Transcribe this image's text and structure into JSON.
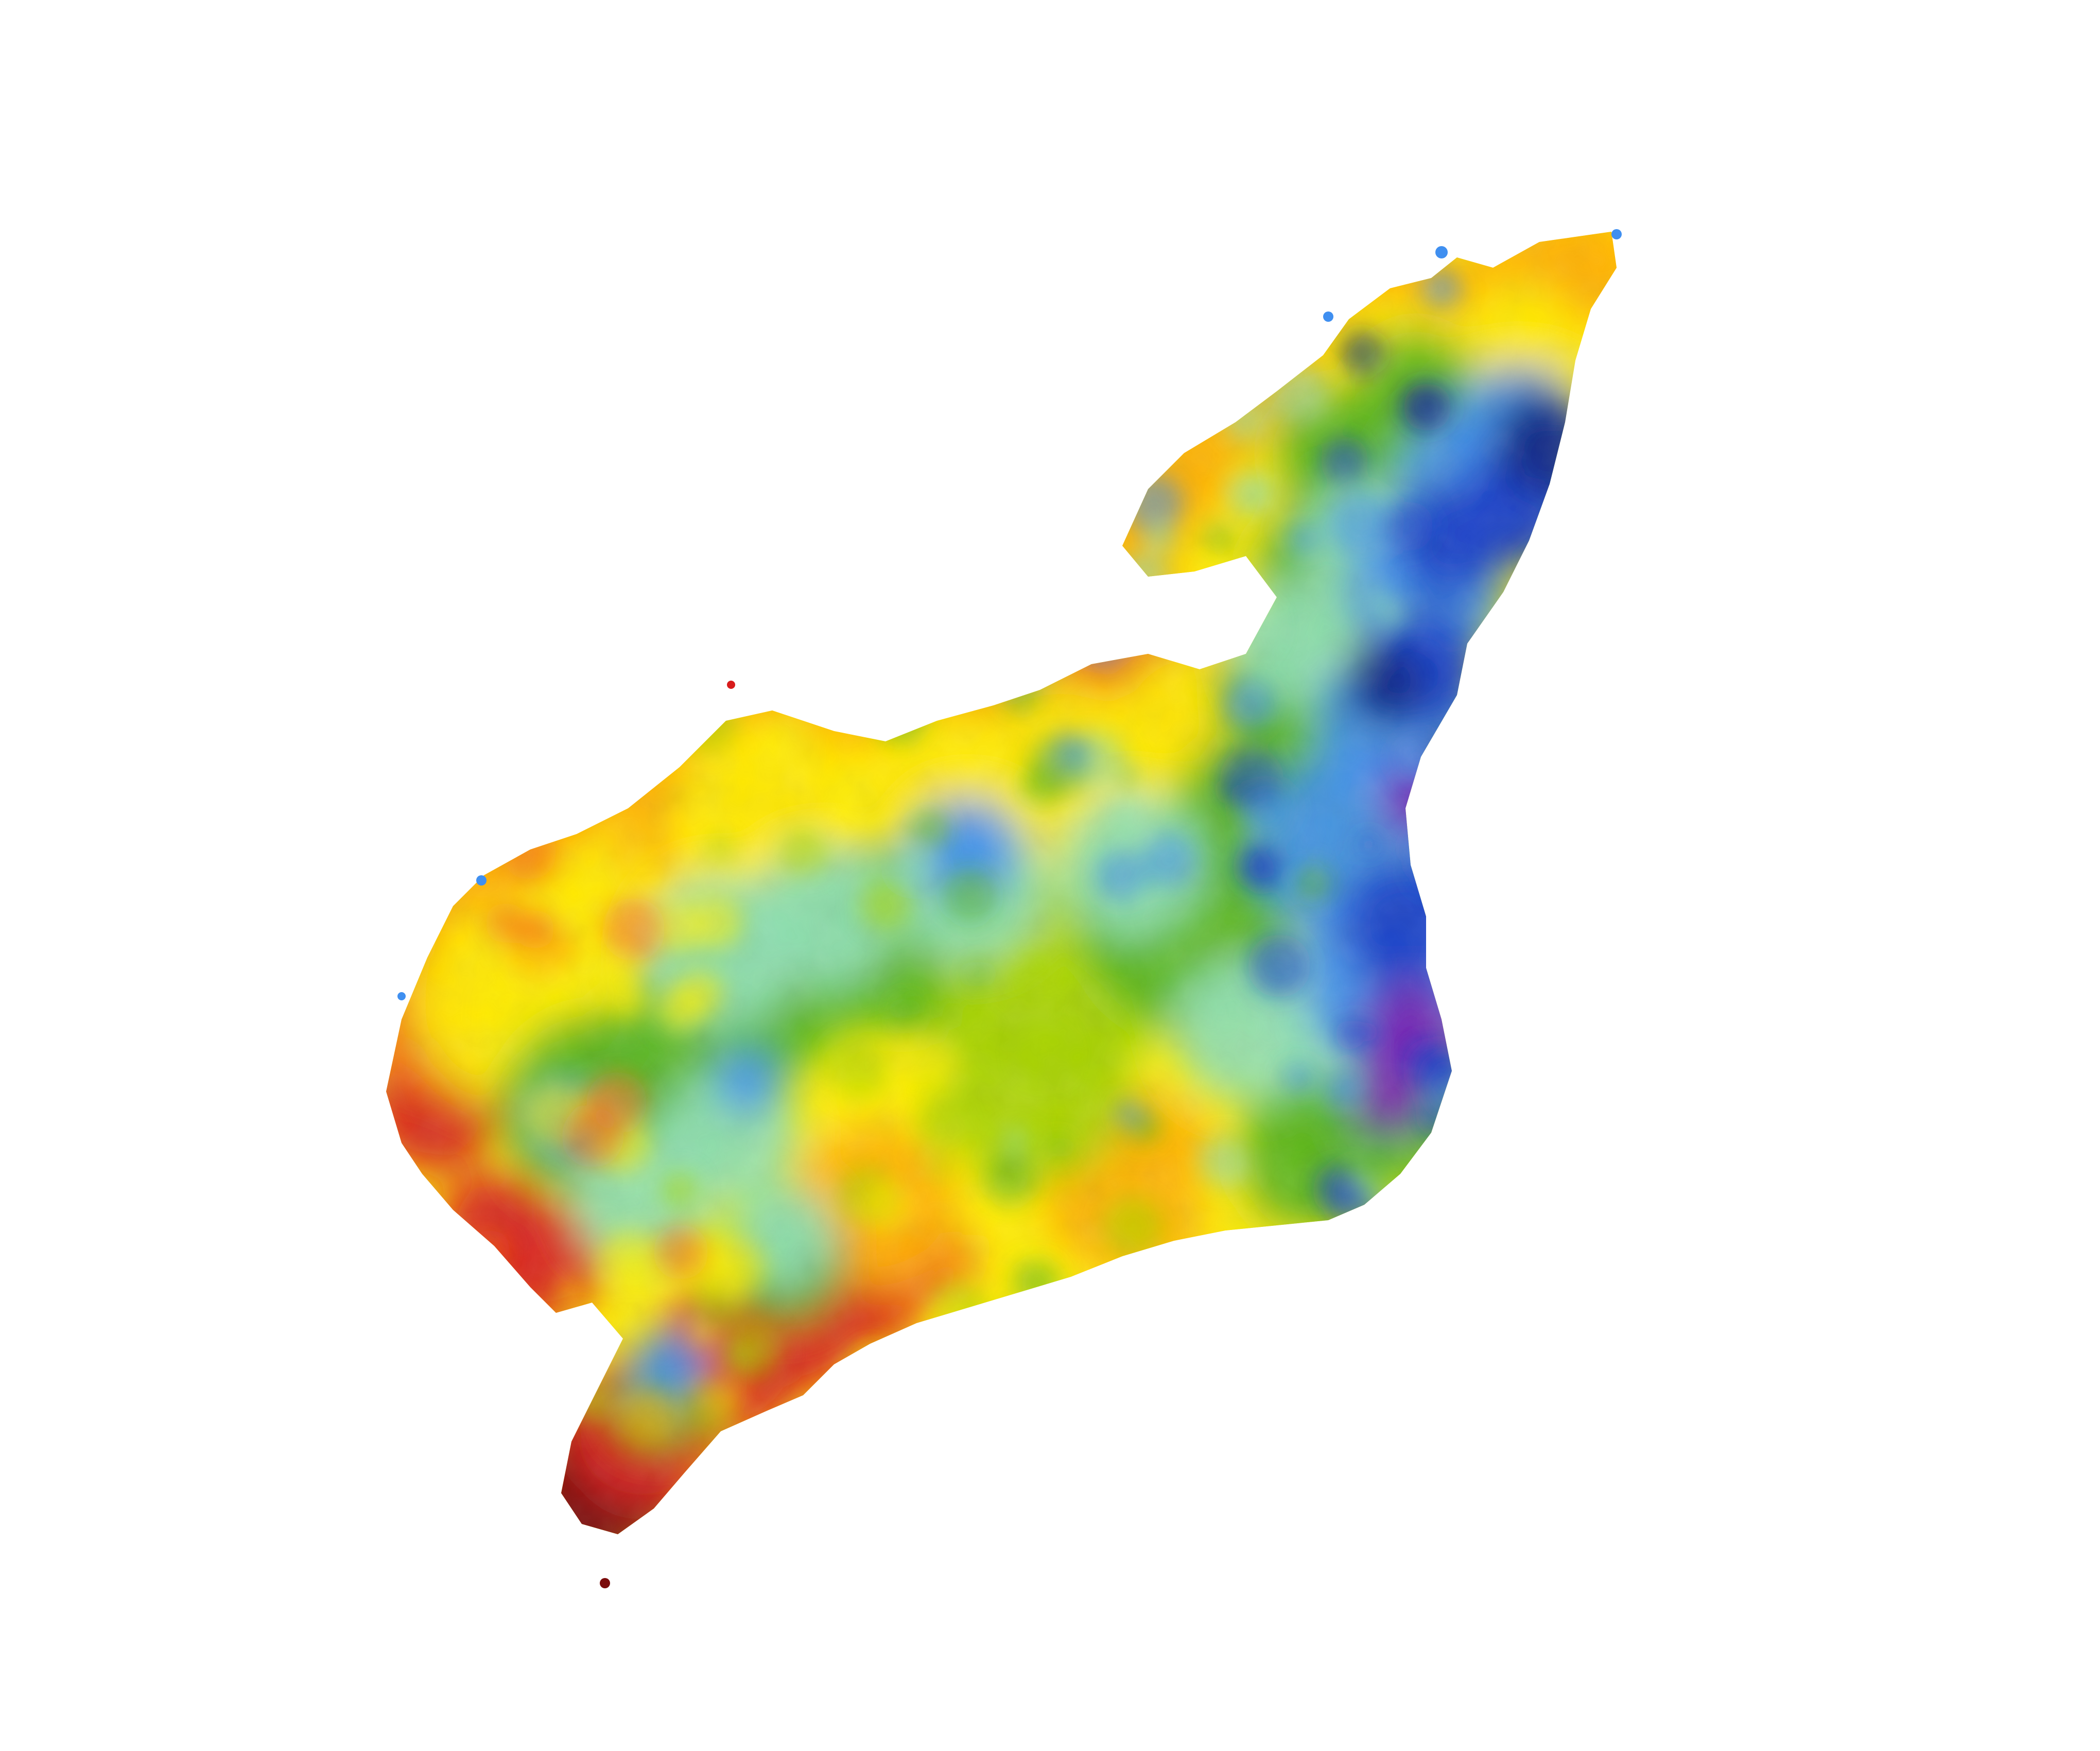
{
  "map": {
    "kind": "raster-heatmap",
    "background_color": "#ffffff",
    "color_ramp": [
      "#7a0a0a",
      "#d81c1c",
      "#f46a1a",
      "#ffb000",
      "#ffee00",
      "#a8d400",
      "#55b51f",
      "#8fe0b4",
      "#3f8ff0",
      "#1a3fc8",
      "#0a1f80",
      "#7a1fb0"
    ],
    "legend": null,
    "labels": []
  }
}
